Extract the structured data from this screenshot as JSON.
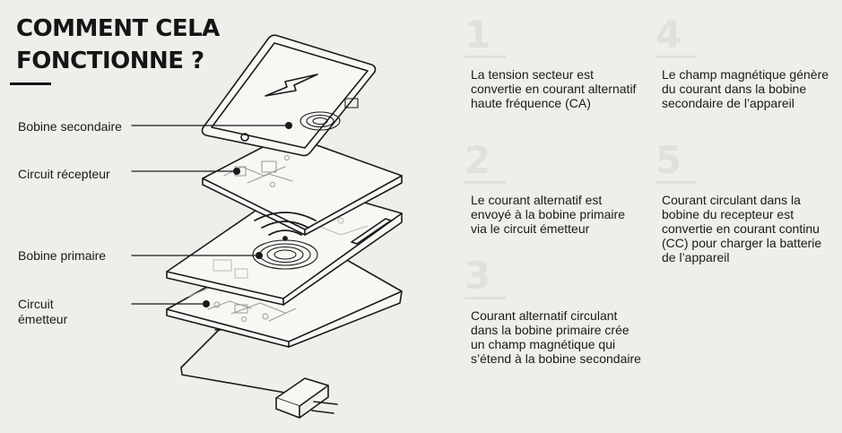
{
  "title": {
    "line1": "COMMENT CELA",
    "line2": "FONCTIONNE ?"
  },
  "labels": {
    "secondary_coil": "Bobine secondaire",
    "receiver_circuit": "Circuit récepteur",
    "primary_coil": "Bobine primaire",
    "emitter_circuit": "Circuit émetteur"
  },
  "steps": [
    {
      "number": "1",
      "text": "La tension secteur est convertie en courant alternatif haute fréquence (CA)"
    },
    {
      "number": "2",
      "text": "Le courant alternatif est envoyé à la bobine primaire via le circuit émetteur"
    },
    {
      "number": "3",
      "text": "Courant alternatif circulant dans la bobine primaire crée un champ magnétique qui s’étend à la bobine secondaire"
    },
    {
      "number": "4",
      "text": "Le champ magnétique génère du courant dans la bobine secondaire de l’appareil"
    },
    {
      "number": "5",
      "text": "Courant circulant dans la bobine du recepteur est convertie en courant continu (CC) pour charger la batterie de l’appareil"
    }
  ],
  "icons": [
    "lightning-bolt-icon",
    "wireless-signal-icon",
    "power-plug-icon"
  ],
  "colors": {
    "background": "#eeeeea",
    "ink": "#1a1a1a",
    "step_number": "#e1e1dc",
    "panel_fill": "#f7f7f4"
  }
}
